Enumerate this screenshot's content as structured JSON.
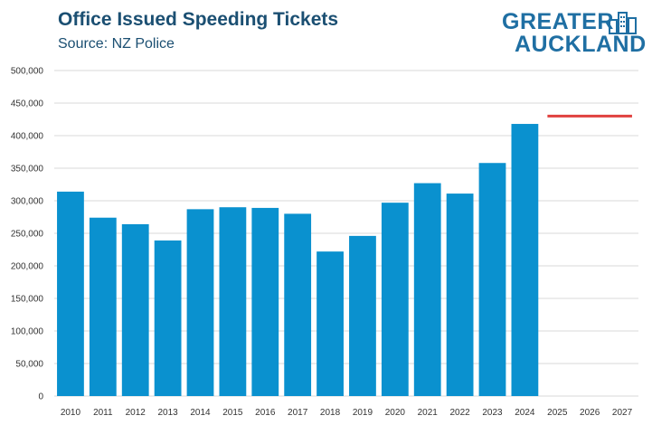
{
  "header": {
    "title": "Office Issued Speeding Tickets",
    "subtitle": "Source: NZ Police"
  },
  "logo": {
    "line1": "GREATER",
    "line2": "AUCKLAND",
    "color": "#1f6fa3"
  },
  "chart_data": {
    "type": "bar",
    "title": "Office Issued Speeding Tickets",
    "subtitle": "Source: NZ Police",
    "xlabel": "",
    "ylabel": "",
    "categories": [
      "2010",
      "2011",
      "2012",
      "2013",
      "2014",
      "2015",
      "2016",
      "2017",
      "2018",
      "2019",
      "2020",
      "2021",
      "2022",
      "2023",
      "2024",
      "2025",
      "2026",
      "2027"
    ],
    "values": [
      314000,
      274000,
      264000,
      239000,
      287000,
      290000,
      289000,
      280000,
      222000,
      246000,
      297000,
      327000,
      311000,
      358000,
      418000,
      null,
      null,
      null
    ],
    "target_line": {
      "value": 430000,
      "from": "2025",
      "to": "2027",
      "color": "#e0413f"
    },
    "ylim": [
      0,
      500000
    ],
    "yticks": [
      0,
      50000,
      100000,
      150000,
      200000,
      250000,
      300000,
      350000,
      400000,
      450000,
      500000
    ],
    "ytick_labels": [
      "0",
      "50,000",
      "100,000",
      "150,000",
      "200,000",
      "250,000",
      "300,000",
      "350,000",
      "400,000",
      "450,000",
      "500,000"
    ],
    "grid": true,
    "bar_color": "#0a91cf",
    "grid_color": "#d9d9d9"
  }
}
